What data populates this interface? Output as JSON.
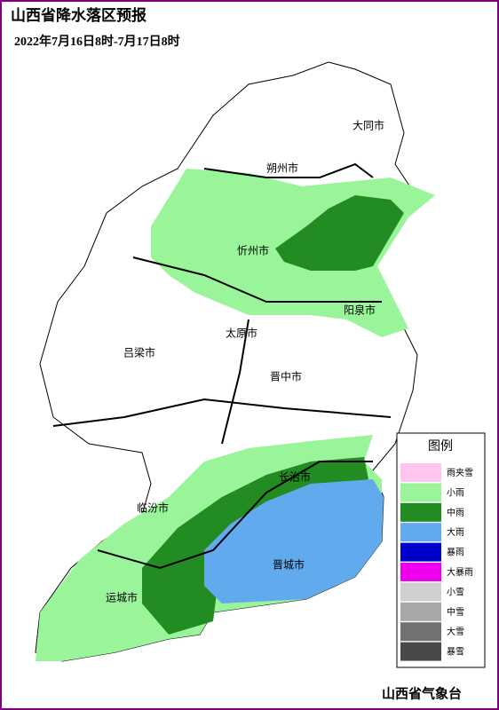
{
  "header": {
    "title": "山西省降水落区预报",
    "subtitle": "2022年7月16日8时-7月17日8时"
  },
  "cities": [
    "大同市",
    "朔州市",
    "忻州市",
    "阳泉市",
    "太原市",
    "吕梁市",
    "晋中市",
    "长治市",
    "临汾市",
    "晋城市",
    "运城市"
  ],
  "legend": {
    "title": "图例",
    "items": [
      {
        "label": "雨夹雪",
        "color": "#ffc4f0"
      },
      {
        "label": "小雨",
        "color": "#9af59a"
      },
      {
        "label": "中雨",
        "color": "#228b22"
      },
      {
        "label": "大雨",
        "color": "#62aaee"
      },
      {
        "label": "暴雨",
        "color": "#0000cc"
      },
      {
        "label": "大暴雨",
        "color": "#ee00ee"
      },
      {
        "label": "小雪",
        "color": "#cfcfcf"
      },
      {
        "label": "中雪",
        "color": "#a8a8a8"
      },
      {
        "label": "大雪",
        "color": "#727272"
      },
      {
        "label": "暴雪",
        "color": "#494949"
      }
    ]
  },
  "footer": "山西省气象台"
}
